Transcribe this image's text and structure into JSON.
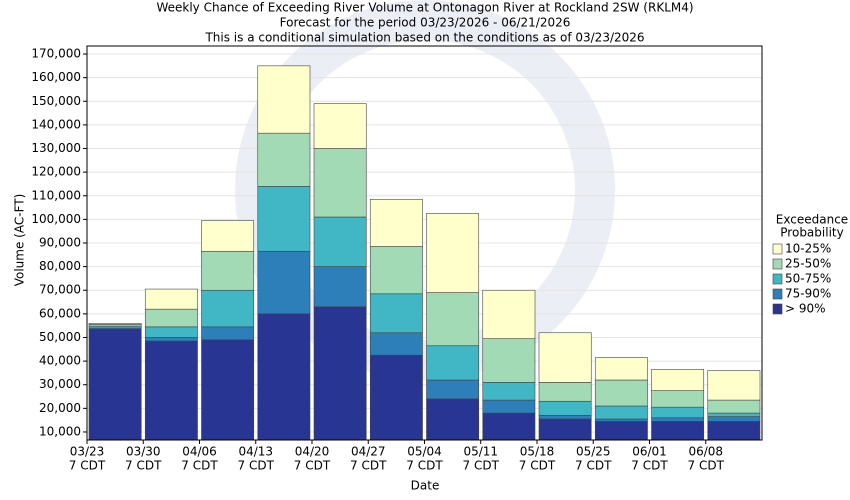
{
  "chart_data": {
    "type": "stacked_bar",
    "title": [
      "Weekly Chance of Exceeding River Volume at Ontonagon River at Rockland 2SW (RKLM4)",
      "Forecast for the period 03/23/2026 - 06/21/2026",
      "This is a conditional simulation based on the conditions as of 03/23/2026"
    ],
    "x_label": "Date",
    "y_label": "Volume (AC-FT)",
    "legend_title": [
      "Exceedance",
      "Probability"
    ],
    "legend_position": "right",
    "grid": true,
    "categories": [
      "03/23",
      "03/30",
      "04/06",
      "04/13",
      "04/20",
      "04/27",
      "05/04",
      "05/11",
      "05/18",
      "05/25",
      "06/01",
      "06/08"
    ],
    "category_times": [
      "7 CDT",
      "7 CDT",
      "7 CDT",
      "7 CDT",
      "7 CDT",
      "7 CDT",
      "7 CDT",
      "7 CDT",
      "7 CDT",
      "7 CDT",
      "7 CDT",
      "7 CDT"
    ],
    "series": [
      {
        "name": "> 90%",
        "color": "#283593",
        "values": [
          53500,
          48500,
          49000,
          60000,
          63000,
          42500,
          24000,
          18000,
          15500,
          14500,
          14500,
          14500
        ]
      },
      {
        "name": "75-90%",
        "color": "#2c7fb8",
        "values": [
          500,
          1500,
          5500,
          26500,
          17000,
          9500,
          8000,
          5500,
          1500,
          1000,
          1500,
          2000
        ]
      },
      {
        "name": "50-75%",
        "color": "#41b6c4",
        "values": [
          800,
          4500,
          15500,
          27500,
          21000,
          16500,
          14500,
          7500,
          6000,
          5500,
          4500,
          1500
        ]
      },
      {
        "name": "25-50%",
        "color": "#a1dab4",
        "values": [
          700,
          7500,
          16500,
          22500,
          29000,
          20000,
          22500,
          18500,
          8000,
          11000,
          7000,
          5500
        ]
      },
      {
        "name": "10-25%",
        "color": "#ffffcc",
        "values": [
          500,
          8500,
          13000,
          28500,
          19000,
          20000,
          33500,
          20500,
          21000,
          9500,
          9000,
          12500
        ]
      }
    ],
    "ylim": [
      6600,
      173400
    ],
    "yticks": [
      {
        "value": 10000,
        "label": "10,000"
      },
      {
        "value": 20000,
        "label": "20,000"
      },
      {
        "value": 30000,
        "label": "30,000"
      },
      {
        "value": 40000,
        "label": "40,000"
      },
      {
        "value": 50000,
        "label": "50,000"
      },
      {
        "value": 60000,
        "label": "60,000"
      },
      {
        "value": 70000,
        "label": "70,000"
      },
      {
        "value": 80000,
        "label": "80,000"
      },
      {
        "value": 90000,
        "label": "90,000"
      },
      {
        "value": 100000,
        "label": "100,000"
      },
      {
        "value": 110000,
        "label": "110,000"
      },
      {
        "value": 120000,
        "label": "120,000"
      },
      {
        "value": 130000,
        "label": "130,000"
      },
      {
        "value": 140000,
        "label": "140,000"
      },
      {
        "value": 150000,
        "label": "150,000"
      },
      {
        "value": 160000,
        "label": "160,000"
      },
      {
        "value": 170000,
        "label": "170,000"
      }
    ]
  }
}
